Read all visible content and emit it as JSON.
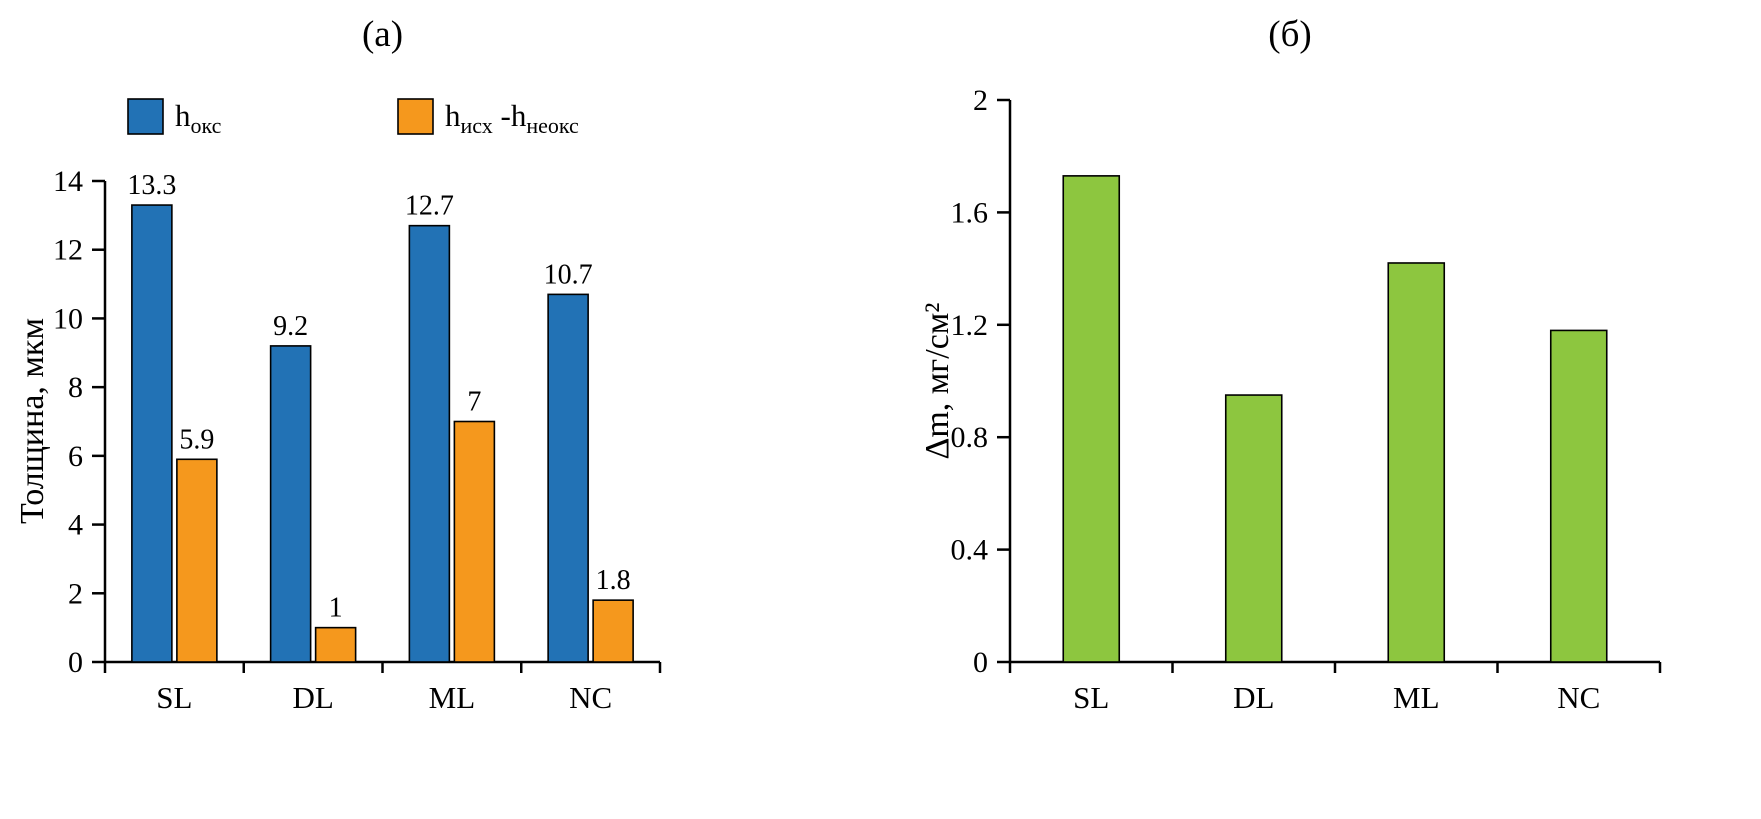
{
  "figure": {
    "background": "#ffffff"
  },
  "axis": {
    "color": "#000000"
  },
  "chart_data": [
    {
      "id": "chart-a",
      "type": "bar",
      "title": "(а)",
      "ylabel": "Толщина, мкм",
      "categories": [
        "SL",
        "DL",
        "ML",
        "NC"
      ],
      "ylim": [
        0,
        14
      ],
      "yticks": [
        0,
        2,
        4,
        6,
        8,
        10,
        12,
        14
      ],
      "grid": false,
      "legend_position": "top",
      "series": [
        {
          "name": "h_окс",
          "color": "#2272B5",
          "values": [
            13.3,
            9.2,
            12.7,
            10.7
          ],
          "value_labels": [
            "13.3",
            "9.2",
            "12.7",
            "10.7"
          ]
        },
        {
          "name": "h_исх - h_неокс",
          "color": "#F5981D",
          "values": [
            5.9,
            1,
            7,
            1.8
          ],
          "value_labels": [
            "5.9",
            "1",
            "7",
            "1.8"
          ]
        }
      ],
      "legend": {
        "items": [
          {
            "color": "#2272B5",
            "text": "h_окс",
            "parts": [
              {
                "text": "h"
              },
              {
                "text": "окс",
                "sub": true
              }
            ]
          },
          {
            "color": "#F5981D",
            "text": "h_исх - h_неокс",
            "parts": [
              {
                "text": "h"
              },
              {
                "text": "исх",
                "sub": true
              },
              {
                "text": " -h"
              },
              {
                "text": "неокс",
                "sub": true
              }
            ]
          }
        ]
      }
    },
    {
      "id": "chart-b",
      "type": "bar",
      "title": "(б)",
      "ylabel": "Δm, мг/см²",
      "categories": [
        "SL",
        "DL",
        "ML",
        "NC"
      ],
      "ylim": [
        0,
        2
      ],
      "yticks": [
        0,
        0.4,
        0.8,
        1.2,
        1.6,
        2
      ],
      "grid": false,
      "legend_position": "none",
      "series": [
        {
          "name": "Δm",
          "color": "#8DC63F",
          "values": [
            1.73,
            0.95,
            1.42,
            1.18
          ]
        }
      ]
    }
  ]
}
